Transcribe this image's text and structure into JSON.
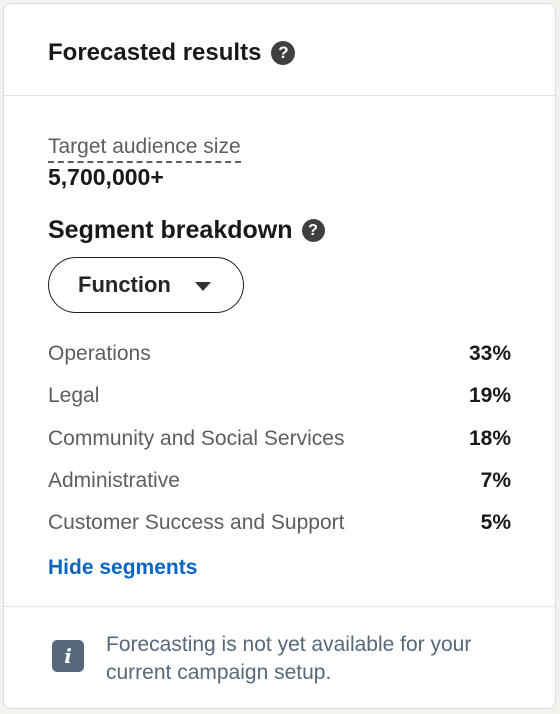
{
  "header": {
    "title": "Forecasted results",
    "help_icon": "?"
  },
  "audience": {
    "label": "Target audience size",
    "value": "5,700,000+"
  },
  "segments": {
    "title": "Segment breakdown",
    "help_icon": "?",
    "dropdown_value": "Function",
    "items": [
      {
        "name": "Operations",
        "value": "33%"
      },
      {
        "name": "Legal",
        "value": "19%"
      },
      {
        "name": "Community and Social Services",
        "value": "18%"
      },
      {
        "name": "Administrative",
        "value": "7%"
      },
      {
        "name": "Customer Success and Support",
        "value": "5%"
      }
    ],
    "hide_link": "Hide segments"
  },
  "footer": {
    "info_icon": "i",
    "message": "Forecasting is not yet available for your current campaign setup."
  },
  "colors": {
    "link": "#0a66c2",
    "muted_text": "#5e5e5e",
    "info_icon_bg": "#56687a"
  }
}
